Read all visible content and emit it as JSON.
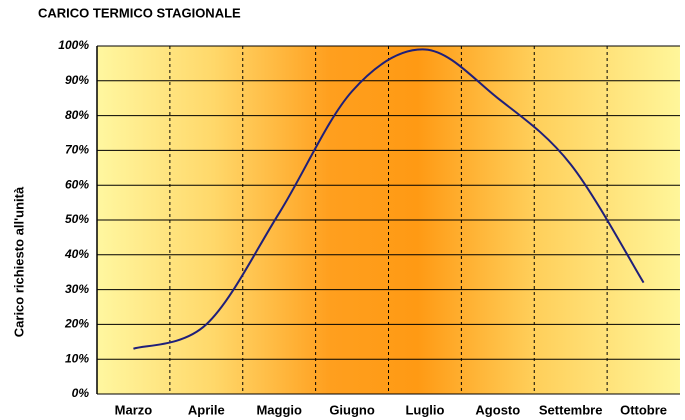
{
  "chart_data": {
    "type": "line",
    "title": "CARICO TERMICO STAGIONALE",
    "y_label": "Carico richiesto all'unità",
    "categories": [
      "Marzo",
      "Aprile",
      "Maggio",
      "Giugno",
      "Luglio",
      "Agosto",
      "Settembre",
      "Ottobre"
    ],
    "series": [
      {
        "name": "Carico",
        "color": "#1f1f7a",
        "values": [
          13,
          20,
          52,
          87,
          99,
          85,
          66,
          32
        ]
      }
    ],
    "ylim": [
      0,
      100
    ],
    "yticks": [
      {
        "value": 0,
        "label": "0%"
      },
      {
        "value": 10,
        "label": "10%"
      },
      {
        "value": 20,
        "label": "20%"
      },
      {
        "value": 30,
        "label": "30%"
      },
      {
        "value": 40,
        "label": "40%"
      },
      {
        "value": 50,
        "label": "50%"
      },
      {
        "value": 60,
        "label": "60%"
      },
      {
        "value": 70,
        "label": "70%"
      },
      {
        "value": 80,
        "label": "80%"
      },
      {
        "value": 90,
        "label": "90%"
      },
      {
        "value": 100,
        "label": "100%"
      }
    ],
    "grid": true
  }
}
